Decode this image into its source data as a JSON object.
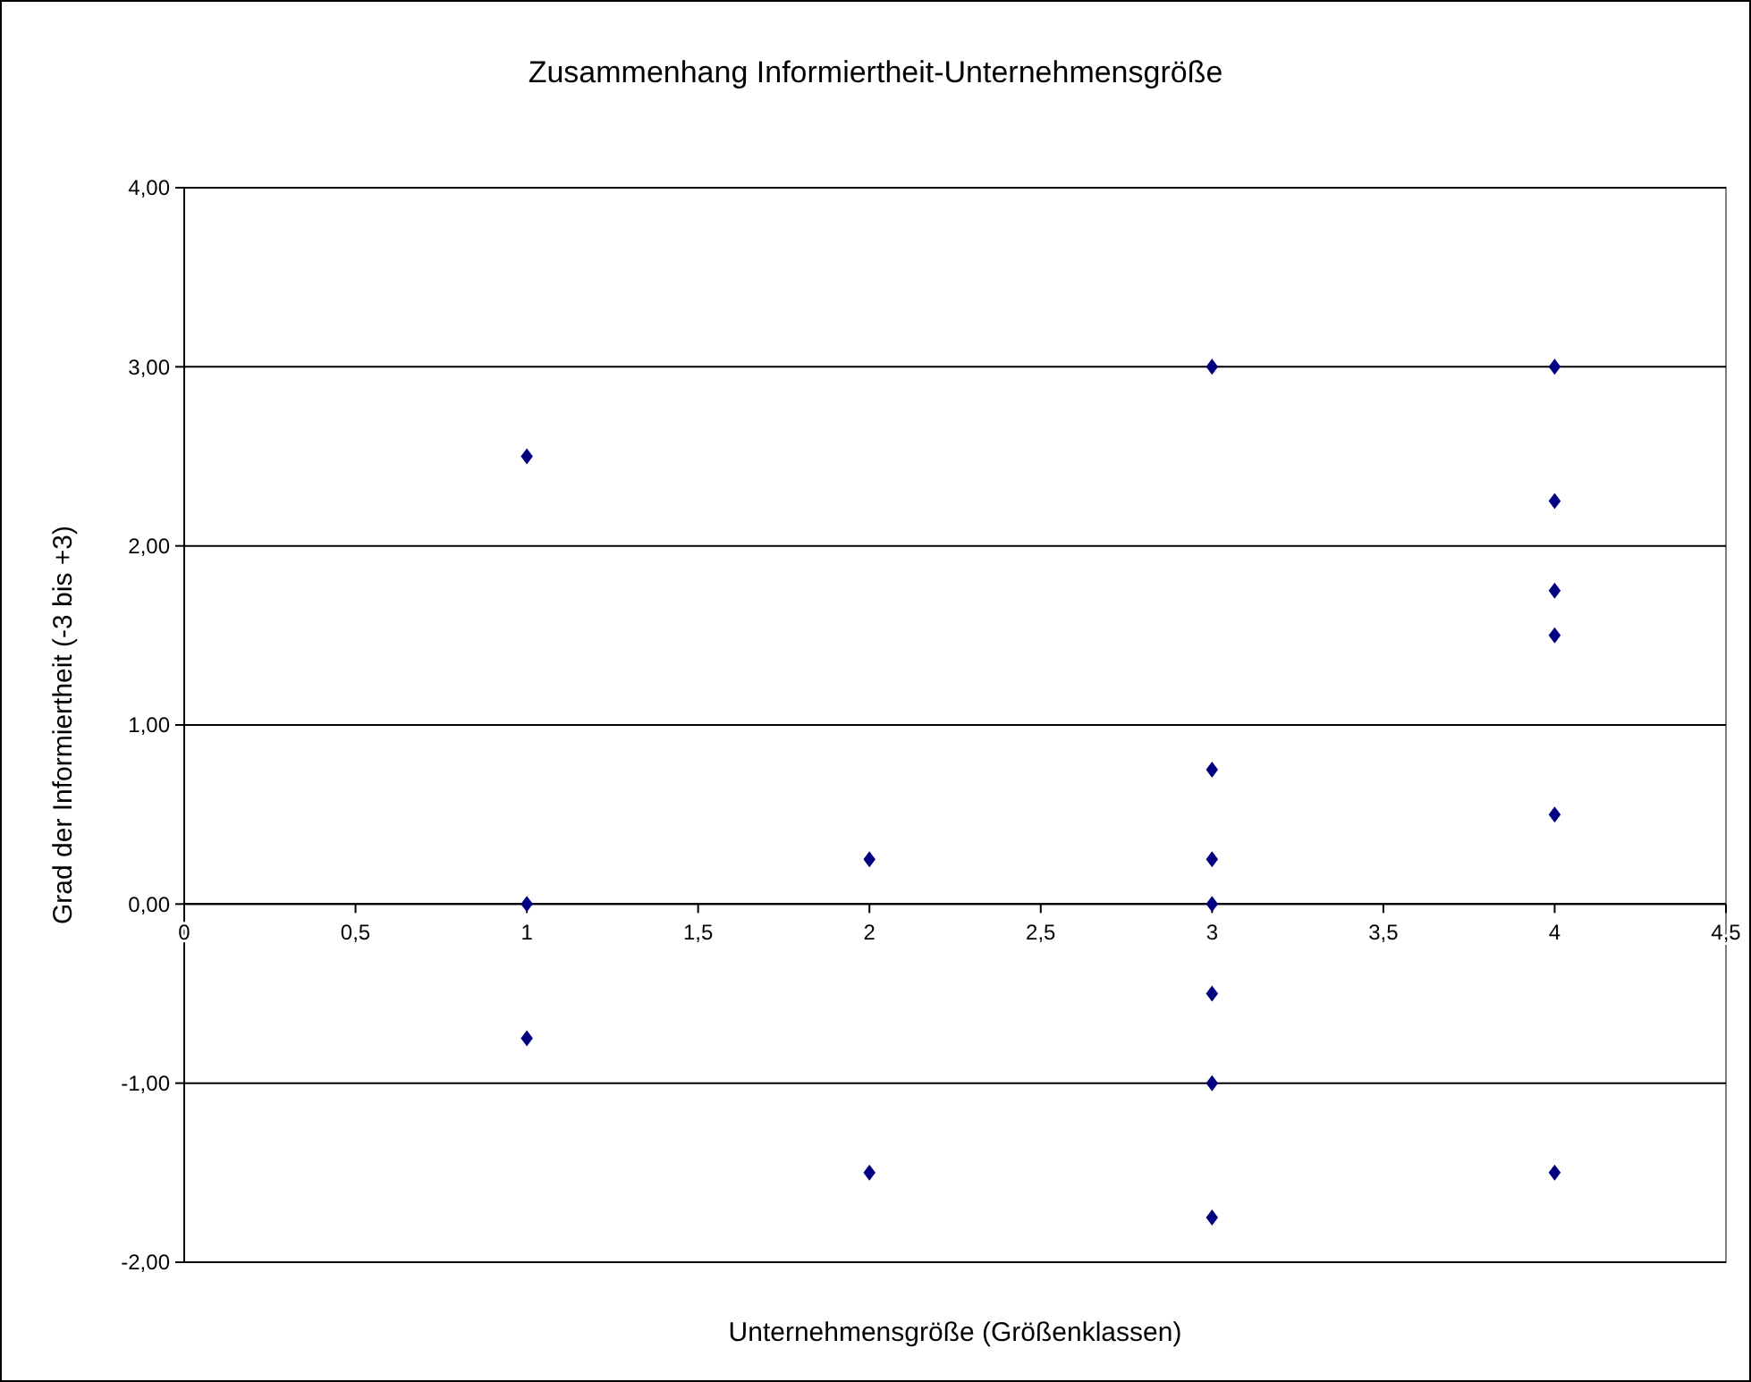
{
  "chart_data": {
    "type": "scatter",
    "title": "Zusammenhang Informiertheit-Unternehmensgröße",
    "xlabel": "Unternehmensgröße (Größenklassen)",
    "ylabel": "Grad der Informiertheit (-3 bis +3)",
    "series": [
      {
        "color": "#000080",
        "x": [
          1,
          1,
          1,
          2,
          2,
          3,
          3,
          3,
          3,
          3,
          3,
          3,
          4,
          4,
          4,
          4,
          4,
          4
        ],
        "values": [
          2.5,
          0,
          -0.75,
          0.25,
          -1.5,
          3,
          0.75,
          0.25,
          0,
          -0.5,
          -1,
          -1.75,
          3,
          2.25,
          1.75,
          1.5,
          0.5,
          -1.5
        ]
      }
    ],
    "xlim": [
      0,
      4.5
    ],
    "xticks": [
      0,
      {
        "value": 0.5,
        "label": "0,5"
      },
      1,
      {
        "value": 1.5,
        "label": "1,5"
      },
      2,
      {
        "value": 2.5,
        "label": "2,5"
      },
      3,
      {
        "value": 3.5,
        "label": "3,5"
      },
      4,
      {
        "value": 4.5,
        "label": "4,5"
      }
    ],
    "ylim": [
      -2,
      4
    ],
    "yticks": [
      {
        "value": -2,
        "label": "-2,00"
      },
      {
        "value": -1,
        "label": "-1,00"
      },
      {
        "value": 0,
        "label": "0,00"
      },
      {
        "value": 1,
        "label": "1,00"
      },
      {
        "value": 2,
        "label": "2,00"
      },
      {
        "value": 3,
        "label": "3,00"
      },
      {
        "value": 4,
        "label": "4,00"
      }
    ],
    "grid": "y",
    "marker": "diamond"
  }
}
